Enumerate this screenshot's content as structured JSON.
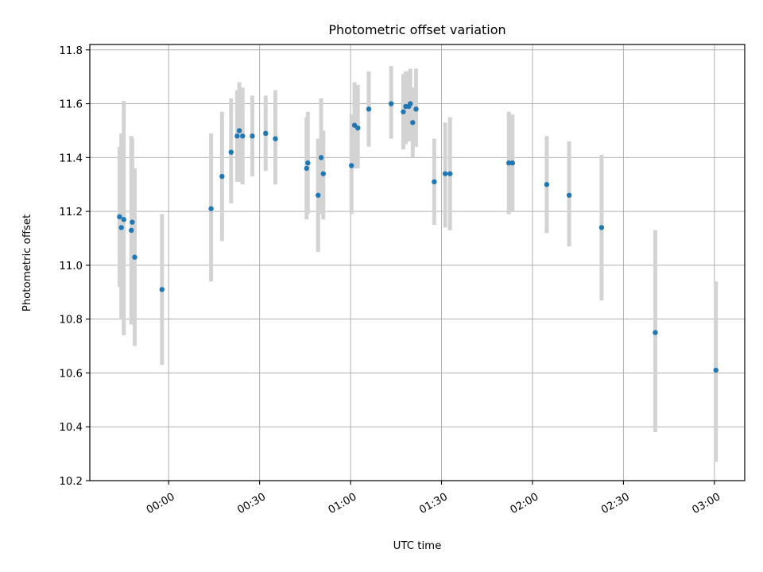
{
  "chart_data": {
    "type": "scatter",
    "title": "Photometric offset variation",
    "xlabel": "UTC time",
    "ylabel": "Photometric offset",
    "x_unit": "minutes after 00:00 UTC",
    "xlim": [
      -26,
      190
    ],
    "ylim": [
      10.2,
      11.82
    ],
    "x_ticks": [
      {
        "value": 0,
        "label": "00:00"
      },
      {
        "value": 30,
        "label": "00:30"
      },
      {
        "value": 60,
        "label": "01:00"
      },
      {
        "value": 90,
        "label": "01:30"
      },
      {
        "value": 120,
        "label": "02:00"
      },
      {
        "value": 150,
        "label": "02:30"
      },
      {
        "value": 180,
        "label": "03:00"
      }
    ],
    "y_ticks": [
      10.2,
      10.4,
      10.6,
      10.8,
      11.0,
      11.2,
      11.4,
      11.6,
      11.8
    ],
    "y_tick_labels": [
      "10.2",
      "10.4",
      "10.6",
      "10.8",
      "11.0",
      "11.2",
      "11.4",
      "11.6",
      "11.8"
    ],
    "grid": true,
    "marker_color": "#1f77b4",
    "errorbar_color": "#d3d3d3",
    "points": [
      {
        "x": -16.2,
        "y": 11.18,
        "lo": 10.92,
        "hi": 11.44
      },
      {
        "x": -15.6,
        "y": 11.14,
        "lo": 10.8,
        "hi": 11.49
      },
      {
        "x": -14.8,
        "y": 11.17,
        "lo": 10.74,
        "hi": 11.61
      },
      {
        "x": -12.3,
        "y": 11.13,
        "lo": 10.78,
        "hi": 11.48
      },
      {
        "x": -12.0,
        "y": 11.16,
        "lo": 10.8,
        "hi": 11.47
      },
      {
        "x": -11.2,
        "y": 11.03,
        "lo": 10.7,
        "hi": 11.36
      },
      {
        "x": -2.2,
        "y": 10.91,
        "lo": 10.63,
        "hi": 11.19
      },
      {
        "x": 14.0,
        "y": 11.21,
        "lo": 10.94,
        "hi": 11.49
      },
      {
        "x": 17.6,
        "y": 11.33,
        "lo": 11.09,
        "hi": 11.57
      },
      {
        "x": 20.6,
        "y": 11.42,
        "lo": 11.23,
        "hi": 11.62
      },
      {
        "x": 22.6,
        "y": 11.48,
        "lo": 11.31,
        "hi": 11.65
      },
      {
        "x": 23.3,
        "y": 11.5,
        "lo": 11.31,
        "hi": 11.68
      },
      {
        "x": 24.4,
        "y": 11.48,
        "lo": 11.3,
        "hi": 11.66
      },
      {
        "x": 27.6,
        "y": 11.48,
        "lo": 11.33,
        "hi": 11.63
      },
      {
        "x": 32.0,
        "y": 11.49,
        "lo": 11.35,
        "hi": 11.63
      },
      {
        "x": 35.2,
        "y": 11.47,
        "lo": 11.3,
        "hi": 11.65
      },
      {
        "x": 45.5,
        "y": 11.36,
        "lo": 11.17,
        "hi": 11.55
      },
      {
        "x": 45.9,
        "y": 11.38,
        "lo": 11.19,
        "hi": 11.57
      },
      {
        "x": 49.3,
        "y": 11.26,
        "lo": 11.05,
        "hi": 11.47
      },
      {
        "x": 50.3,
        "y": 11.4,
        "lo": 11.19,
        "hi": 11.62
      },
      {
        "x": 51.0,
        "y": 11.34,
        "lo": 11.17,
        "hi": 11.5
      },
      {
        "x": 60.3,
        "y": 11.37,
        "lo": 11.19,
        "hi": 11.56
      },
      {
        "x": 61.3,
        "y": 11.52,
        "lo": 11.36,
        "hi": 11.68
      },
      {
        "x": 62.4,
        "y": 11.51,
        "lo": 11.36,
        "hi": 11.67
      },
      {
        "x": 66.0,
        "y": 11.58,
        "lo": 11.44,
        "hi": 11.72
      },
      {
        "x": 73.4,
        "y": 11.6,
        "lo": 11.47,
        "hi": 11.74
      },
      {
        "x": 77.4,
        "y": 11.57,
        "lo": 11.43,
        "hi": 11.71
      },
      {
        "x": 78.2,
        "y": 11.59,
        "lo": 11.45,
        "hi": 11.72
      },
      {
        "x": 79.2,
        "y": 11.59,
        "lo": 11.46,
        "hi": 11.72
      },
      {
        "x": 79.7,
        "y": 11.6,
        "lo": 11.47,
        "hi": 11.73
      },
      {
        "x": 80.5,
        "y": 11.53,
        "lo": 11.4,
        "hi": 11.66
      },
      {
        "x": 81.6,
        "y": 11.58,
        "lo": 11.44,
        "hi": 11.73
      },
      {
        "x": 87.6,
        "y": 11.31,
        "lo": 11.15,
        "hi": 11.47
      },
      {
        "x": 91.2,
        "y": 11.34,
        "lo": 11.14,
        "hi": 11.53
      },
      {
        "x": 92.8,
        "y": 11.34,
        "lo": 11.13,
        "hi": 11.55
      },
      {
        "x": 112.2,
        "y": 11.38,
        "lo": 11.19,
        "hi": 11.57
      },
      {
        "x": 113.4,
        "y": 11.38,
        "lo": 11.2,
        "hi": 11.56
      },
      {
        "x": 124.7,
        "y": 11.3,
        "lo": 11.12,
        "hi": 11.48
      },
      {
        "x": 132.1,
        "y": 11.26,
        "lo": 11.07,
        "hi": 11.46
      },
      {
        "x": 142.8,
        "y": 11.14,
        "lo": 10.87,
        "hi": 11.41
      },
      {
        "x": 160.5,
        "y": 10.75,
        "lo": 10.38,
        "hi": 11.13
      },
      {
        "x": 180.5,
        "y": 10.61,
        "lo": 10.27,
        "hi": 10.94
      }
    ]
  }
}
